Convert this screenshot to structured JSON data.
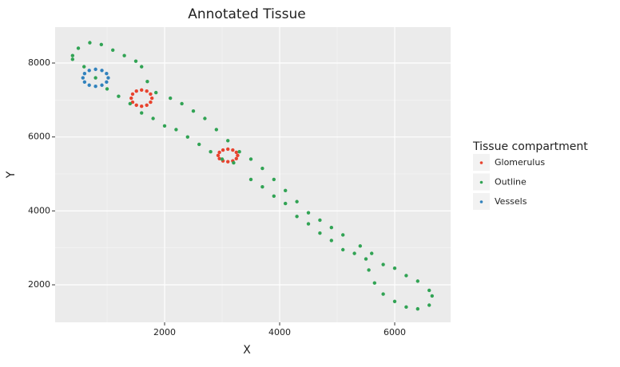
{
  "chart_data": {
    "type": "scatter",
    "title": "Annotated Tissue",
    "x_label": "X",
    "y_label": "Y",
    "xlim": [
      97,
      6972
    ],
    "ylim": [
      986,
      8971
    ],
    "xticks": [
      2000,
      4000,
      6000
    ],
    "yticks": [
      2000,
      4000,
      6000,
      8000
    ],
    "x_minor_grid": [
      1000,
      3000,
      5000
    ],
    "y_minor_grid": [
      3000,
      5000,
      7000
    ],
    "grid": true,
    "legend": "right",
    "legend_title": "Tissue compartment",
    "series": [
      {
        "name": "Glomerulus",
        "color": "#e8432e",
        "x": [
          1780,
          1756,
          1690,
          1600,
          1510,
          1444,
          1420,
          1444,
          1510,
          1600,
          1690,
          1756,
          3270,
          3247,
          3185,
          3100,
          3015,
          2953,
          2930,
          2953,
          3015,
          3100,
          3185,
          3247
        ],
        "values": [
          7050,
          7160,
          7241,
          7270,
          7241,
          7160,
          7050,
          6940,
          6859,
          6830,
          6859,
          6940,
          5500,
          5585,
          5647,
          5670,
          5647,
          5585,
          5500,
          5415,
          5353,
          5330,
          5353,
          5415
        ]
      },
      {
        "name": "Outline",
        "color": "#31a354",
        "x": [
          400,
          500,
          700,
          900,
          1100,
          1300,
          1500,
          1600,
          1700,
          1850,
          2100,
          2300,
          2500,
          2700,
          2900,
          3100,
          3300,
          3500,
          3700,
          3900,
          4100,
          4300,
          4500,
          4700,
          4900,
          5100,
          5400,
          5600,
          5800,
          6000,
          6200,
          6400,
          6600,
          6650,
          6600,
          6400,
          6200,
          6000,
          5800,
          5650,
          5550,
          5500,
          5300,
          5100,
          4900,
          4700,
          4500,
          4300,
          4100,
          3900,
          3700,
          3500,
          3200,
          3000,
          2800,
          2600,
          2400,
          2200,
          2000,
          1800,
          1600,
          1400,
          1200,
          1000,
          800,
          600,
          400
        ],
        "values": [
          8200,
          8400,
          8550,
          8500,
          8350,
          8200,
          8050,
          7900,
          7500,
          7200,
          7050,
          6900,
          6700,
          6500,
          6200,
          5900,
          5600,
          5400,
          5150,
          4850,
          4550,
          4250,
          3950,
          3750,
          3550,
          3350,
          3050,
          2850,
          2550,
          2450,
          2250,
          2100,
          1850,
          1700,
          1450,
          1350,
          1400,
          1550,
          1750,
          2050,
          2400,
          2700,
          2850,
          2950,
          3200,
          3400,
          3650,
          3850,
          4200,
          4400,
          4650,
          4850,
          5300,
          5400,
          5600,
          5800,
          6000,
          6200,
          6300,
          6500,
          6650,
          6900,
          7100,
          7300,
          7600,
          7900,
          8100
        ]
      },
      {
        "name": "Vessels",
        "color": "#3182bd",
        "x": [
          1020,
          991,
          910,
          800,
          690,
          609,
          580,
          609,
          690,
          800,
          910,
          991
        ],
        "values": [
          7600,
          7715,
          7799,
          7830,
          7799,
          7715,
          7600,
          7485,
          7401,
          7370,
          7401,
          7485
        ]
      }
    ]
  }
}
